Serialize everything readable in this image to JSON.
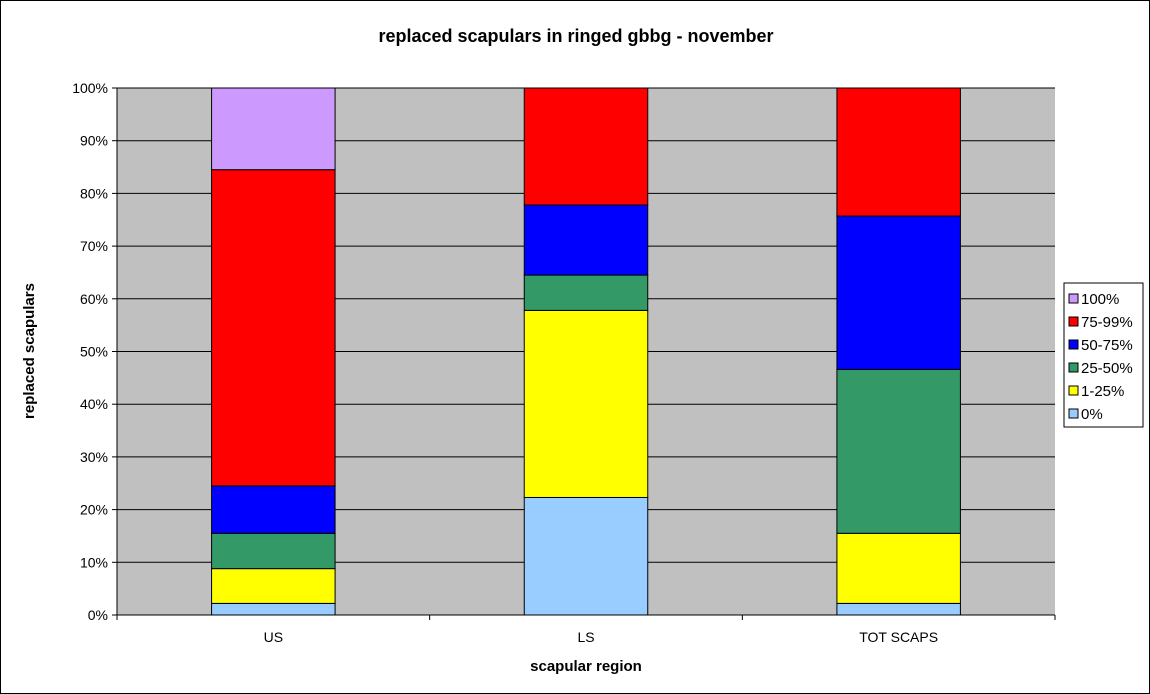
{
  "chart_data": {
    "type": "bar",
    "stacked": "percent",
    "title": "replaced scapulars in ringed gbbg - november",
    "xlabel": "scapular region",
    "ylabel": "replaced scapulars",
    "categories": [
      "US",
      "LS",
      "TOT SCAPS"
    ],
    "ylim": [
      0,
      100
    ],
    "yticks": [
      "0%",
      "10%",
      "20%",
      "30%",
      "40%",
      "50%",
      "60%",
      "70%",
      "80%",
      "90%",
      "100%"
    ],
    "grid": true,
    "legend_position": "right",
    "plot_background": "#C0C0C0",
    "series": [
      {
        "name": "0%",
        "color": "#99CCFF",
        "values": [
          2.2,
          22.3,
          2.2
        ]
      },
      {
        "name": "1-25%",
        "color": "#FFFF00",
        "values": [
          6.6,
          35.5,
          13.3
        ]
      },
      {
        "name": "25-50%",
        "color": "#339966",
        "values": [
          6.7,
          6.7,
          31.1
        ]
      },
      {
        "name": "50-75%",
        "color": "#0000FF",
        "values": [
          9.0,
          13.3,
          29.1
        ]
      },
      {
        "name": "75-99%",
        "color": "#FF0000",
        "values": [
          60.0,
          22.2,
          24.3
        ]
      },
      {
        "name": "100%",
        "color": "#CC99FF",
        "values": [
          15.5,
          0,
          0
        ]
      }
    ]
  }
}
